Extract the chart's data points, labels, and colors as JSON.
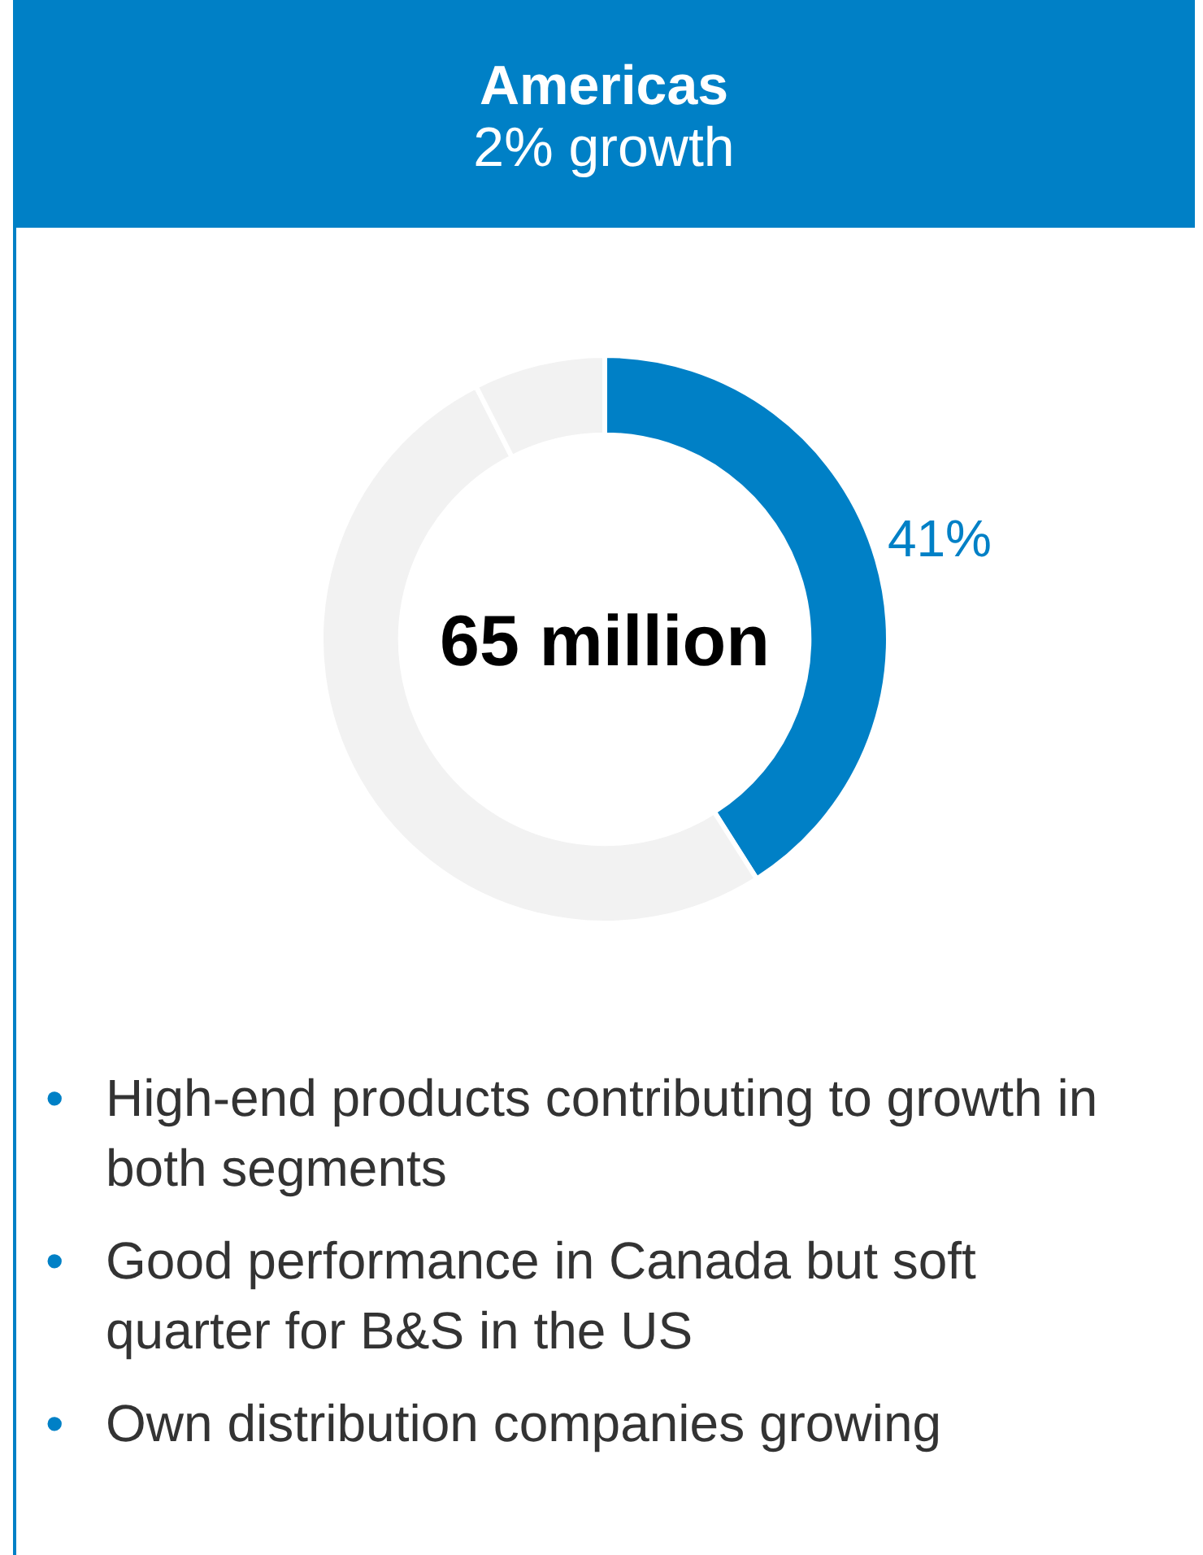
{
  "chart_data": {
    "type": "donut",
    "title": "Americas",
    "subtitle": "2% growth",
    "categories": [
      null,
      null,
      null
    ],
    "values": [
      41,
      51.5,
      7.5
    ],
    "colors": [
      "#0080c6",
      "#f2f2f2",
      "#f2f2f2"
    ],
    "value_labels": [
      "41%",
      null,
      null
    ],
    "annotations": [
      "65 million",
      "• High-end products contributing to growth in both segments",
      "• Good performance in Canada but soft quarter for B&S in the US",
      "• Own distribution companies growing"
    ]
  }
}
